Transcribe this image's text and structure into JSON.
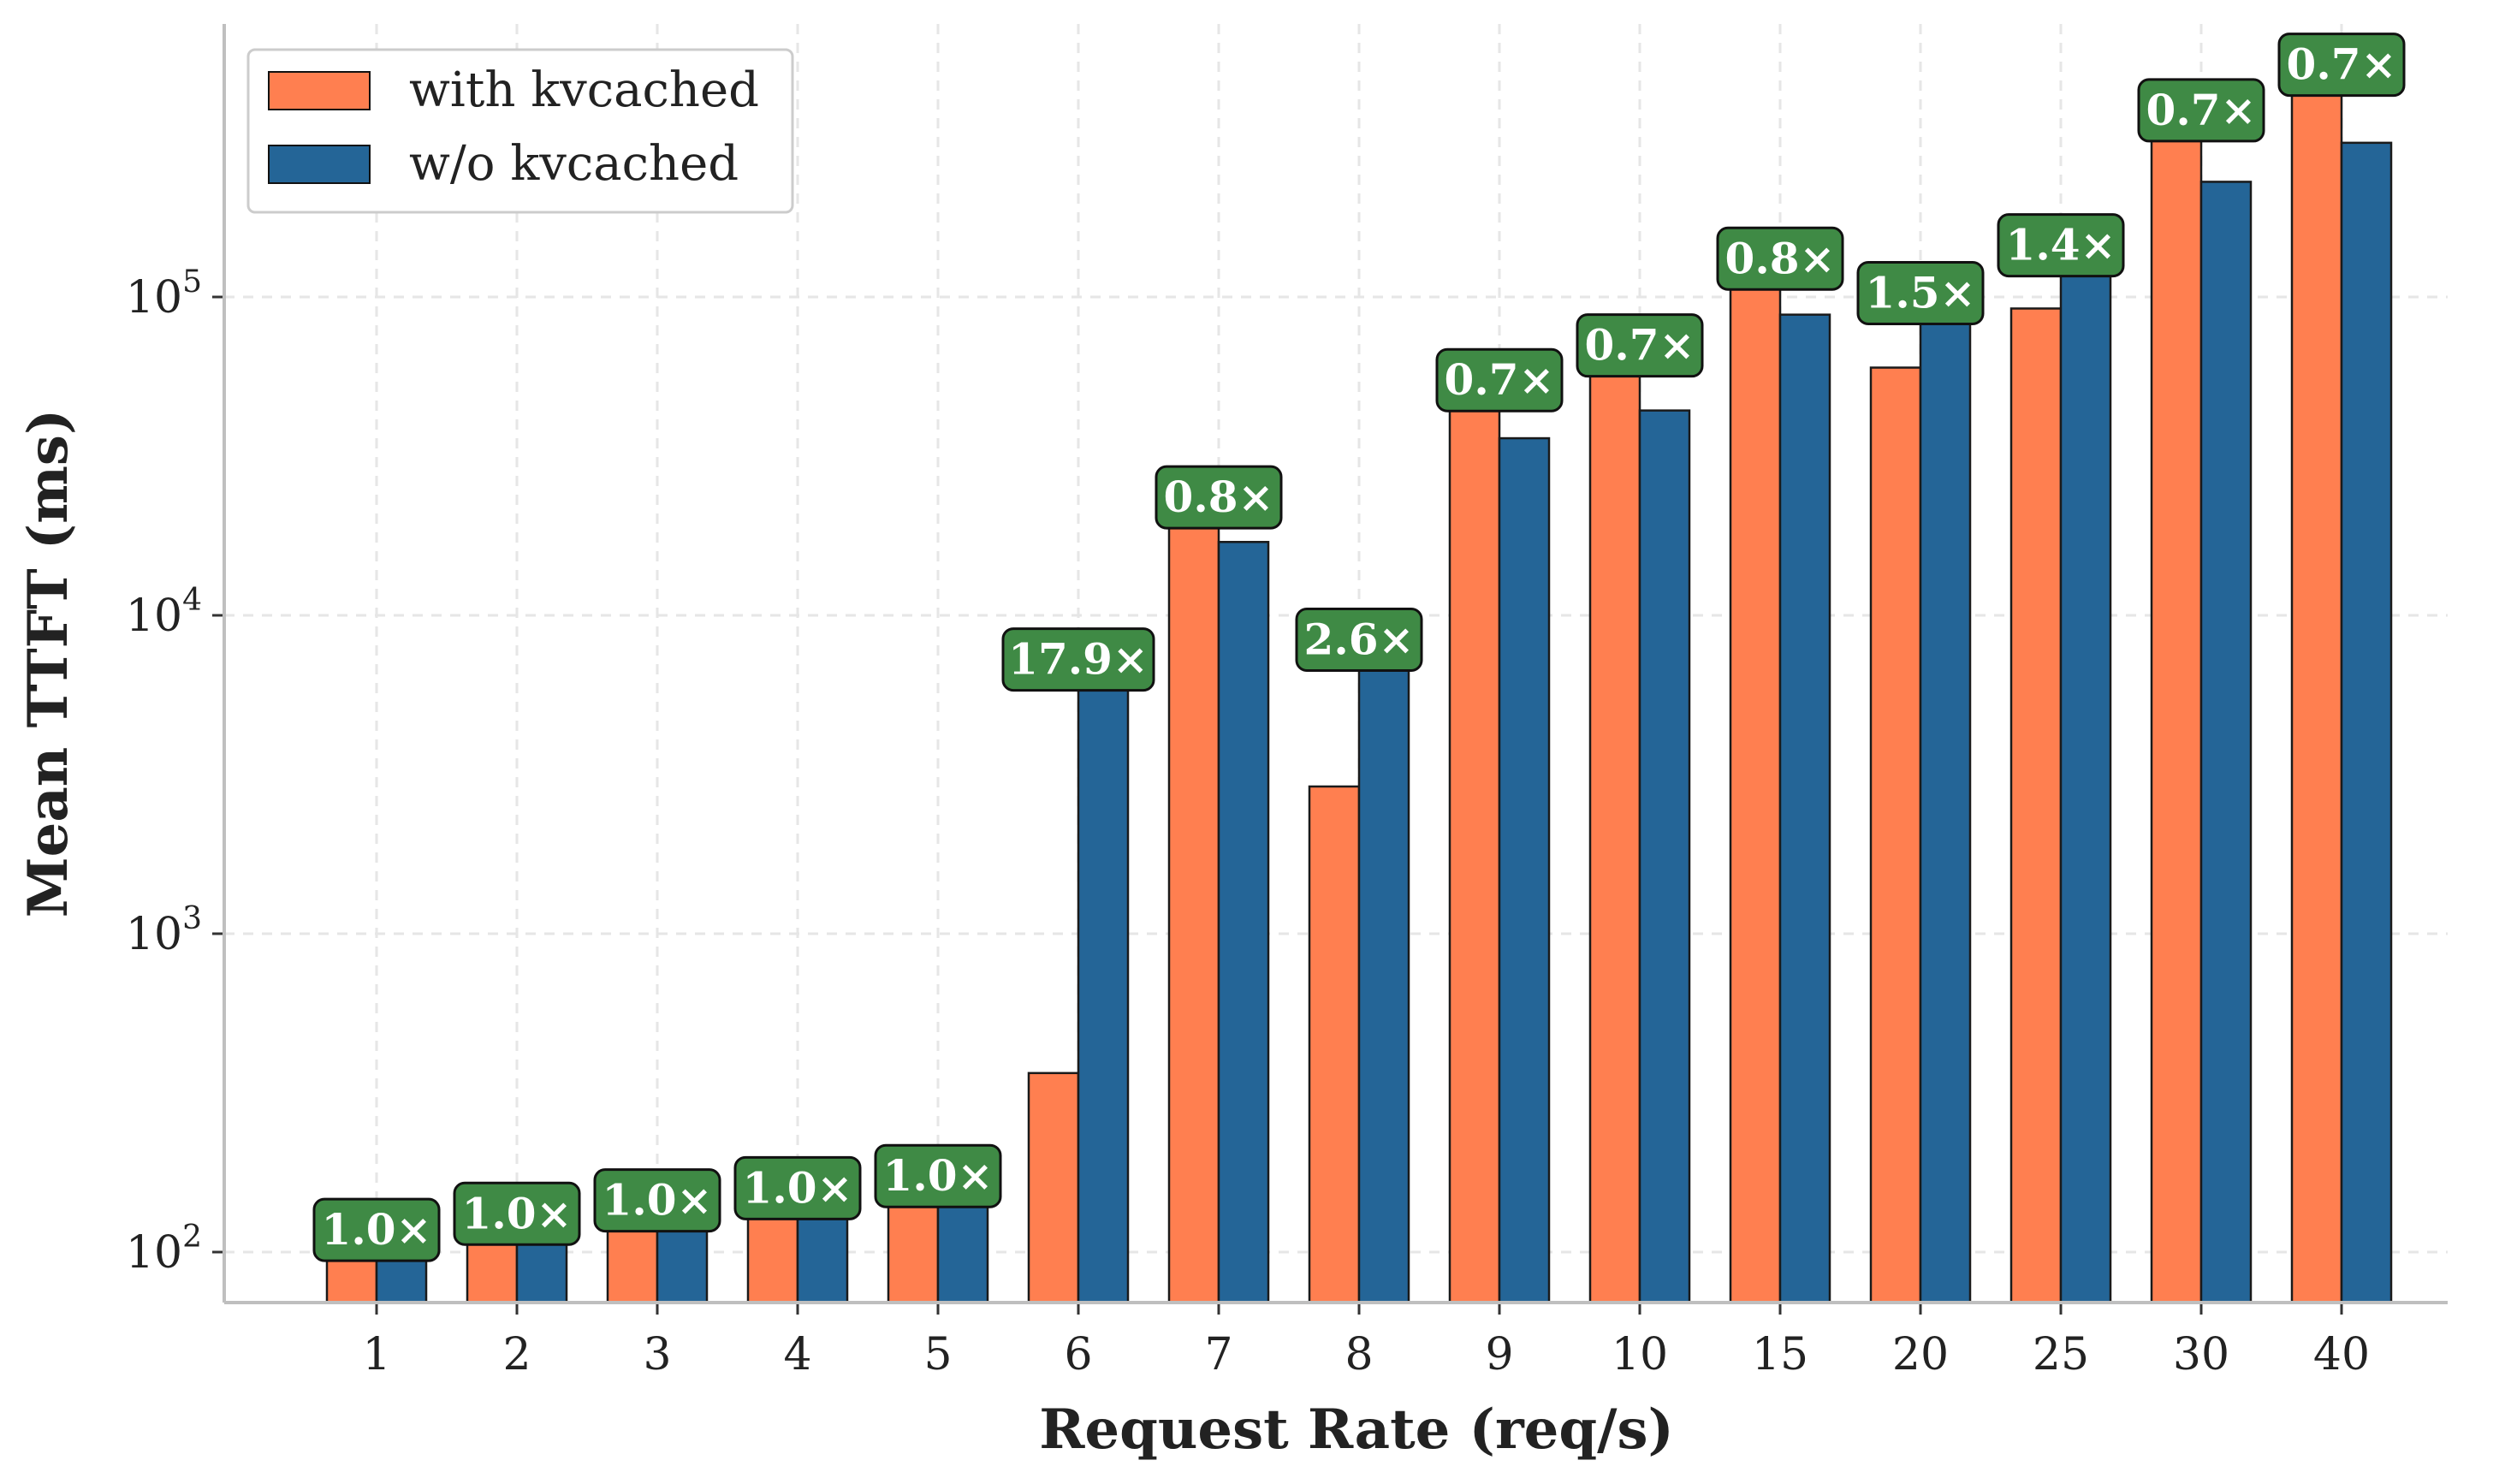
{
  "chart_data": {
    "type": "bar",
    "xlabel": "Request Rate (req/s)",
    "ylabel": "Mean TTFT (ms)",
    "yscale": "log",
    "ylim": [
      68,
      750000
    ],
    "yticks": [
      {
        "value": 100,
        "base": "10",
        "exp": "2"
      },
      {
        "value": 1000,
        "base": "10",
        "exp": "3"
      },
      {
        "value": 10000,
        "base": "10",
        "exp": "4"
      },
      {
        "value": 100000,
        "base": "10",
        "exp": "5"
      }
    ],
    "grid": true,
    "legend_position": "top-left",
    "categories": [
      "1",
      "2",
      "3",
      "4",
      "5",
      "6",
      "7",
      "8",
      "9",
      "10",
      "15",
      "20",
      "25",
      "30",
      "40"
    ],
    "series": [
      {
        "name": "with kvcached",
        "color": "#ff7f50",
        "values": [
          105,
          118,
          130,
          142,
          155,
          365,
          21000,
          2900,
          49000,
          63000,
          118000,
          60000,
          92000,
          345000,
          480000
        ]
      },
      {
        "name": "w/o kvcached",
        "color": "#246597",
        "values": [
          105,
          118,
          130,
          138,
          155,
          6500,
          17000,
          7500,
          36000,
          44000,
          88000,
          92000,
          130000,
          230000,
          305000
        ]
      }
    ],
    "speedup_labels": [
      "1.0×",
      "1.0×",
      "1.0×",
      "1.0×",
      "1.0×",
      "17.9×",
      "0.8×",
      "2.6×",
      "0.7×",
      "0.7×",
      "0.8×",
      "1.5×",
      "1.4×",
      "0.7×",
      "0.7×"
    ],
    "badge_color": "#3f8a45"
  }
}
